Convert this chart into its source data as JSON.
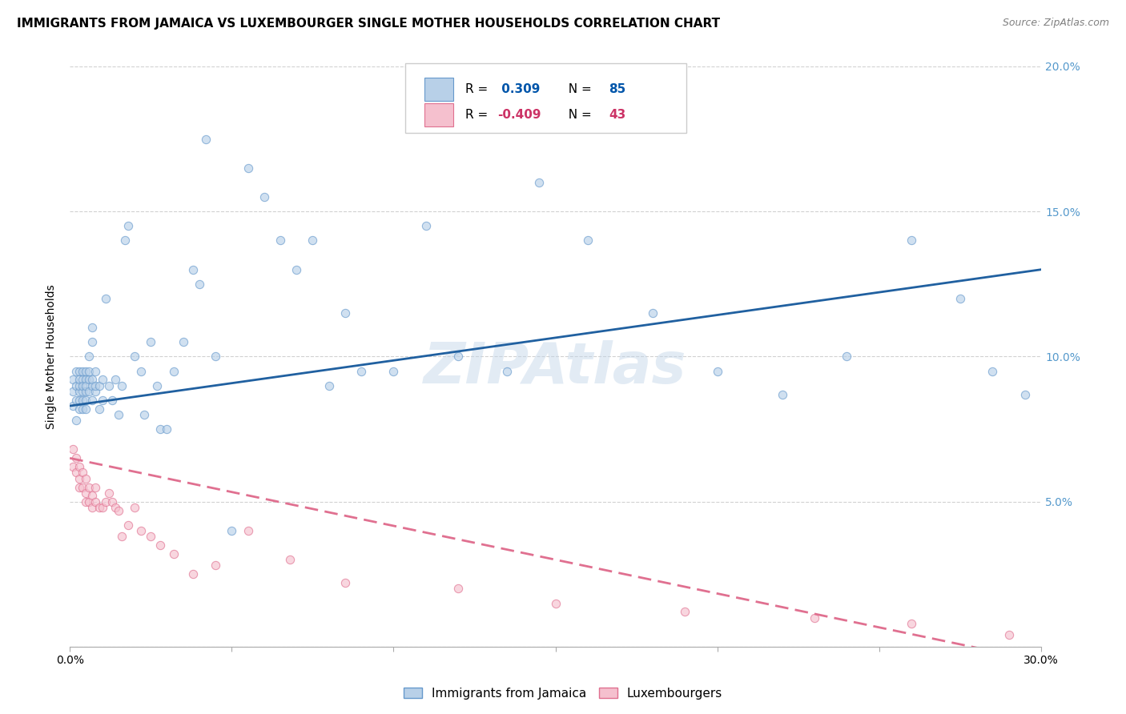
{
  "title": "IMMIGRANTS FROM JAMAICA VS LUXEMBOURGER SINGLE MOTHER HOUSEHOLDS CORRELATION CHART",
  "source": "Source: ZipAtlas.com",
  "ylabel": "Single Mother Households",
  "xmin": 0.0,
  "xmax": 0.3,
  "ymin": 0.0,
  "ymax": 0.2,
  "xticks": [
    0.0,
    0.05,
    0.1,
    0.15,
    0.2,
    0.25,
    0.3
  ],
  "yticks": [
    0.0,
    0.05,
    0.1,
    0.15,
    0.2
  ],
  "legend_entries": [
    {
      "label_r": "R = ",
      "label_rv": " 0.309",
      "label_n": "   N = ",
      "label_nv": "85",
      "color": "#b8d0e8",
      "edge_color": "#6699cc"
    },
    {
      "label_r": "R = ",
      "label_rv": "-0.409",
      "label_n": "   N = ",
      "label_nv": "43",
      "color": "#f5b8c8",
      "edge_color": "#e07090"
    }
  ],
  "jamaica_scatter_x": [
    0.001,
    0.001,
    0.001,
    0.002,
    0.002,
    0.002,
    0.002,
    0.003,
    0.003,
    0.003,
    0.003,
    0.003,
    0.003,
    0.004,
    0.004,
    0.004,
    0.004,
    0.004,
    0.004,
    0.005,
    0.005,
    0.005,
    0.005,
    0.005,
    0.005,
    0.006,
    0.006,
    0.006,
    0.006,
    0.007,
    0.007,
    0.007,
    0.007,
    0.007,
    0.008,
    0.008,
    0.008,
    0.009,
    0.009,
    0.01,
    0.01,
    0.011,
    0.012,
    0.013,
    0.014,
    0.015,
    0.016,
    0.017,
    0.018,
    0.02,
    0.022,
    0.023,
    0.025,
    0.027,
    0.028,
    0.03,
    0.032,
    0.035,
    0.038,
    0.04,
    0.042,
    0.045,
    0.05,
    0.055,
    0.06,
    0.065,
    0.07,
    0.075,
    0.08,
    0.085,
    0.09,
    0.1,
    0.11,
    0.12,
    0.135,
    0.145,
    0.16,
    0.18,
    0.2,
    0.22,
    0.24,
    0.26,
    0.275,
    0.285,
    0.295
  ],
  "jamaica_scatter_y": [
    0.088,
    0.083,
    0.092,
    0.085,
    0.09,
    0.078,
    0.095,
    0.088,
    0.082,
    0.095,
    0.09,
    0.085,
    0.092,
    0.088,
    0.092,
    0.085,
    0.09,
    0.095,
    0.082,
    0.088,
    0.092,
    0.085,
    0.09,
    0.095,
    0.082,
    0.092,
    0.088,
    0.095,
    0.1,
    0.09,
    0.085,
    0.092,
    0.105,
    0.11,
    0.088,
    0.09,
    0.095,
    0.082,
    0.09,
    0.085,
    0.092,
    0.12,
    0.09,
    0.085,
    0.092,
    0.08,
    0.09,
    0.14,
    0.145,
    0.1,
    0.095,
    0.08,
    0.105,
    0.09,
    0.075,
    0.075,
    0.095,
    0.105,
    0.13,
    0.125,
    0.175,
    0.1,
    0.04,
    0.165,
    0.155,
    0.14,
    0.13,
    0.14,
    0.09,
    0.115,
    0.095,
    0.095,
    0.145,
    0.1,
    0.095,
    0.16,
    0.14,
    0.115,
    0.095,
    0.087,
    0.1,
    0.14,
    0.12,
    0.095,
    0.087
  ],
  "luxembourger_scatter_x": [
    0.001,
    0.001,
    0.002,
    0.002,
    0.003,
    0.003,
    0.003,
    0.004,
    0.004,
    0.005,
    0.005,
    0.005,
    0.006,
    0.006,
    0.007,
    0.007,
    0.008,
    0.008,
    0.009,
    0.01,
    0.011,
    0.012,
    0.013,
    0.014,
    0.015,
    0.016,
    0.018,
    0.02,
    0.022,
    0.025,
    0.028,
    0.032,
    0.038,
    0.045,
    0.055,
    0.068,
    0.085,
    0.12,
    0.15,
    0.19,
    0.23,
    0.26,
    0.29
  ],
  "luxembourger_scatter_y": [
    0.068,
    0.062,
    0.065,
    0.06,
    0.062,
    0.058,
    0.055,
    0.06,
    0.055,
    0.058,
    0.053,
    0.05,
    0.055,
    0.05,
    0.052,
    0.048,
    0.055,
    0.05,
    0.048,
    0.048,
    0.05,
    0.053,
    0.05,
    0.048,
    0.047,
    0.038,
    0.042,
    0.048,
    0.04,
    0.038,
    0.035,
    0.032,
    0.025,
    0.028,
    0.04,
    0.03,
    0.022,
    0.02,
    0.015,
    0.012,
    0.01,
    0.008,
    0.004
  ],
  "jamaica_line_start_x": 0.0,
  "jamaica_line_end_x": 0.3,
  "jamaica_line_start_y": 0.083,
  "jamaica_line_end_y": 0.13,
  "luxembourger_line_start_x": 0.0,
  "luxembourger_line_end_x": 0.3,
  "luxembourger_line_start_y": 0.065,
  "luxembourger_line_end_y": -0.005,
  "scatter_size": 55,
  "scatter_alpha": 0.65,
  "jamaica_scatter_color": "#b8d0e8",
  "jamaica_scatter_edge": "#6699cc",
  "luxembourger_scatter_color": "#f5c0ce",
  "luxembourger_scatter_edge": "#e07090",
  "jamaica_line_color": "#2060a0",
  "luxembourger_line_color": "#e07090",
  "grid_color": "#cccccc",
  "background_color": "#ffffff",
  "watermark_text": "ZIPAtlas",
  "watermark_color": "#c0d4e8",
  "watermark_alpha": 0.45,
  "right_axis_color": "#5599cc",
  "title_fontsize": 11,
  "source_fontsize": 9,
  "axis_label_fontsize": 10,
  "tick_fontsize": 10,
  "legend_fontsize": 11
}
